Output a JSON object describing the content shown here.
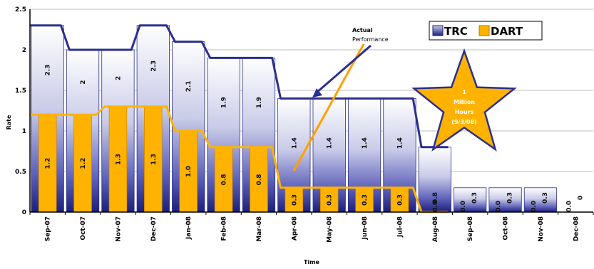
{
  "chart_data": {
    "type": "bar",
    "xlabel": "Time",
    "ylabel": "Rate",
    "ylim": [
      0,
      2.5
    ],
    "yticks": [
      "0",
      "0.5",
      "1",
      "1.5",
      "2",
      "2.5"
    ],
    "grid": true,
    "legend_position": "top-right",
    "categories": [
      "Sep-07",
      "Oct-07",
      "Nov-07",
      "Dec-07",
      "Jan-08",
      "Feb-08",
      "Mar-08",
      "Apr-08",
      "May-08",
      "Jun-08",
      "Jul-08",
      "Aug-08",
      "Sep-08",
      "Oct-08",
      "Nov-08",
      "Dec-08"
    ],
    "series": [
      {
        "name": "TRC",
        "color": "#2b2f8f",
        "values": [
          2.3,
          2.0,
          2.0,
          2.3,
          2.1,
          1.9,
          1.9,
          1.4,
          1.4,
          1.4,
          1.4,
          0.8,
          0.3,
          0.3,
          0.3,
          0
        ],
        "labels": [
          "2.3",
          "2",
          "2",
          "2.3",
          "2.1",
          "1.9",
          "1.9",
          "1.4",
          "1.4",
          "1.4",
          "1.4",
          "0.8",
          "0.3",
          "0.3",
          "0.3",
          "0"
        ]
      },
      {
        "name": "DART",
        "color": "#ffb300",
        "values": [
          1.2,
          1.2,
          1.3,
          1.3,
          1.0,
          0.8,
          0.8,
          0.3,
          0.3,
          0.3,
          0.3,
          0,
          0,
          0,
          0,
          0
        ],
        "labels": [
          "1.2",
          "1.2",
          "1.3",
          "1.3",
          "1.0",
          "0.8",
          "0.8",
          "0.3",
          "0.3",
          "0.3",
          "0.3",
          "0.0",
          "0.0",
          "0.0",
          "0.0",
          "0.0"
        ]
      }
    ],
    "annotations": {
      "actual_label_line1": "Actual",
      "actual_label_line2": "Performance",
      "star_line1": "1",
      "star_line2": "Million",
      "star_line3": "Hours",
      "star_line4": "(9/3/08)"
    }
  }
}
